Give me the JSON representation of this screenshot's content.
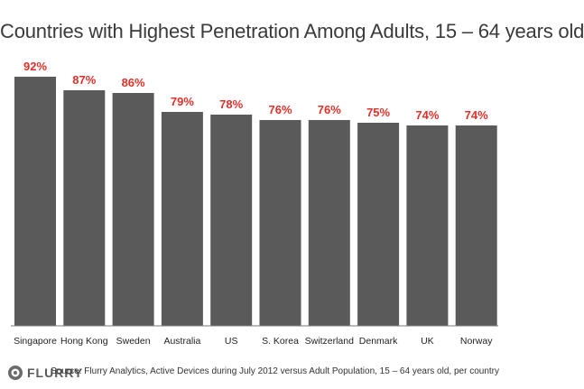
{
  "chart_data": {
    "type": "bar",
    "title": "Countries with Highest Penetration Among Adults, 15 – 64 years old",
    "categories": [
      "Singapore",
      "Hong Kong",
      "Sweden",
      "Australia",
      "US",
      "S. Korea",
      "Switzerland",
      "Denmark",
      "UK",
      "Norway"
    ],
    "values": [
      92,
      87,
      86,
      79,
      78,
      76,
      76,
      75,
      74,
      74
    ],
    "value_labels": [
      "92%",
      "87%",
      "86%",
      "79%",
      "78%",
      "76%",
      "76%",
      "75%",
      "74%",
      "74%"
    ],
    "unit": "%",
    "ylim": [
      0,
      100
    ],
    "grid": false,
    "legend": "none",
    "bar_color": "#5a5a5a",
    "label_color": "#e0312a"
  },
  "footer": {
    "logo_text": "FLURRY",
    "source": "Source: Flurry Analytics, Active Devices during July 2012 versus Adult Population, 15 – 64 years old, per country"
  }
}
